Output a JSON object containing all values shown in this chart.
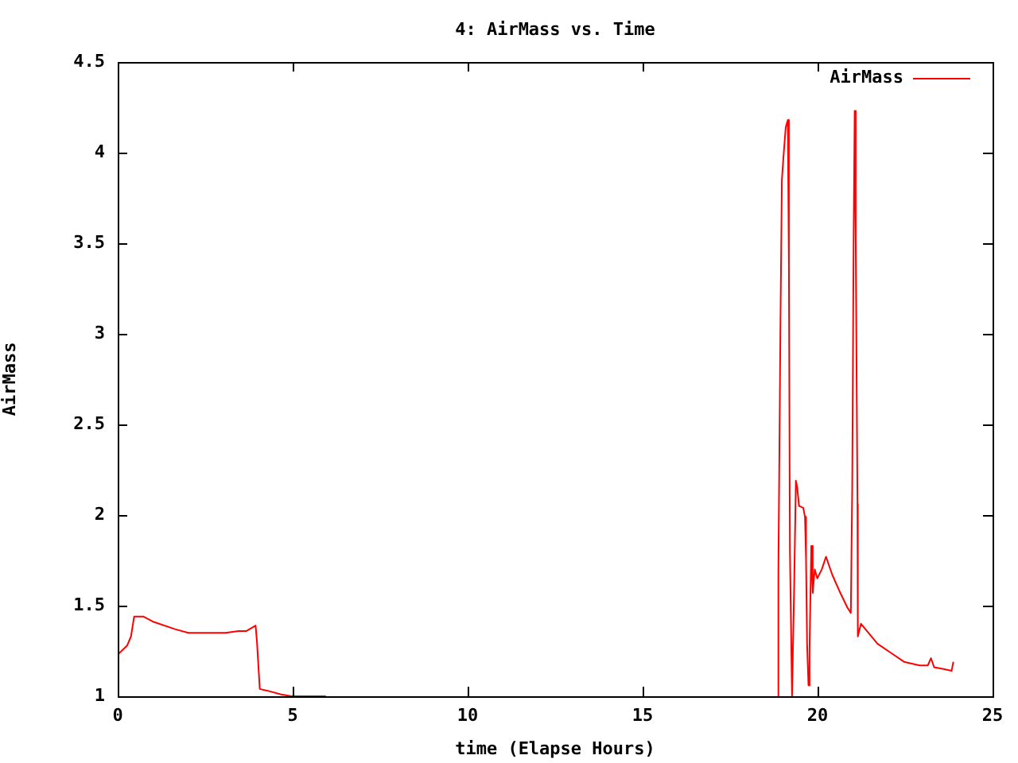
{
  "chart_data": {
    "type": "line",
    "title": "4: AirMass vs. Time",
    "xlabel": "time (Elapse Hours)",
    "ylabel": "AirMass",
    "xlim": [
      0,
      25
    ],
    "xticks": [
      0,
      5,
      10,
      15,
      20,
      25
    ],
    "ylim": [
      1,
      4.5
    ],
    "yticks": [
      1,
      1.5,
      2,
      2.5,
      3,
      3.5,
      4,
      4.5
    ],
    "grid": false,
    "legend": "top right",
    "marker": "none",
    "line_style": "solid",
    "x": [
      0,
      0.27,
      0.38,
      0.47,
      0.73,
      1.03,
      1.64,
      2.02,
      3.08,
      3.45,
      3.68,
      3.94,
      3.98,
      4.06,
      4.29,
      4.67,
      4.97,
      5.95,
      12,
      18.88,
      18.88,
      18.94,
      18.98,
      19.03,
      19.09,
      19.15,
      19.18,
      19.21,
      19.27,
      19.33,
      19.38,
      19.42,
      19.47,
      19.59,
      19.64,
      19.67,
      19.7,
      19.74,
      19.77,
      19.82,
      19.86,
      19.92,
      19.99,
      20.12,
      20.24,
      20.42,
      20.65,
      20.85,
      20.95,
      20.99,
      21.03,
      21.06,
      21.09,
      21.14,
      21.15,
      21.24,
      21.41,
      21.71,
      22.09,
      22.47,
      22.92,
      23.15,
      23.24,
      23.33,
      23.6,
      23.83,
      23.88
    ],
    "series": [
      {
        "name": "AirMass",
        "color": "#ff0000",
        "values": [
          1.23,
          1.28,
          1.33,
          1.44,
          1.44,
          1.41,
          1.37,
          1.35,
          1.35,
          1.36,
          1.36,
          1.39,
          1.3,
          1.04,
          1.03,
          1.01,
          1.0,
          1.0,
          null,
          1.0,
          1.69,
          3.08,
          3.85,
          3.99,
          4.14,
          4.18,
          3.38,
          1.8,
          1.0,
          1.6,
          2.19,
          2.15,
          2.05,
          2.04,
          1.99,
          1.76,
          1.29,
          1.06,
          1.26,
          1.83,
          1.57,
          1.7,
          1.65,
          1.7,
          1.77,
          1.67,
          1.57,
          1.49,
          1.46,
          2.15,
          3.53,
          4.23,
          3.5,
          2.06,
          1.33,
          1.4,
          1.36,
          1.29,
          1.24,
          1.19,
          1.17,
          1.17,
          1.21,
          1.16,
          1.15,
          1.14,
          1.19
        ]
      }
    ]
  }
}
